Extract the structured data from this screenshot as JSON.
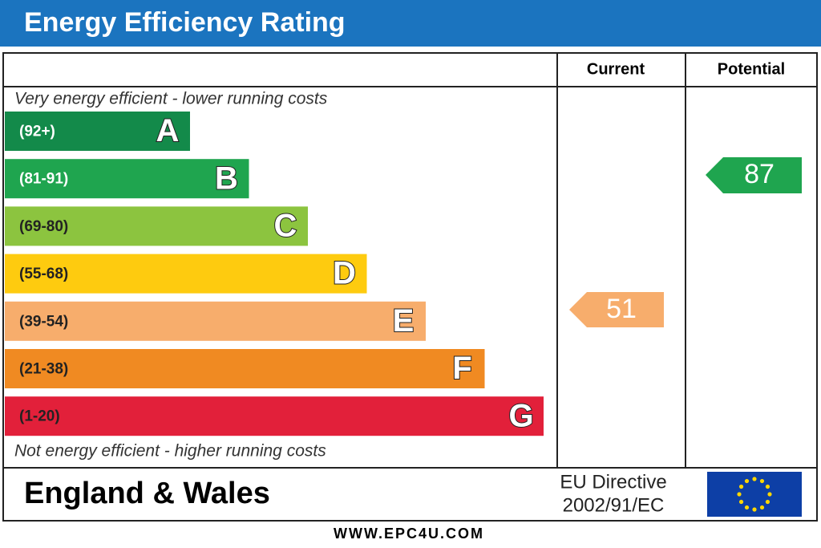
{
  "title": "Energy Efficiency Rating",
  "columns": [
    "Current",
    "Potential"
  ],
  "top_note": "Very energy efficient - lower running costs",
  "bottom_note": "Not energy efficient - higher running costs",
  "bands": [
    {
      "range": "(92+)",
      "letter": "A",
      "color": "#138a4a"
    },
    {
      "range": "(81-91)",
      "letter": "B",
      "color": "#1fa54f"
    },
    {
      "range": "(69-80)",
      "letter": "C",
      "color": "#8cc43f"
    },
    {
      "range": "(55-68)",
      "letter": "D",
      "color": "#fecb0f"
    },
    {
      "range": "(39-54)",
      "letter": "E",
      "color": "#f7ad6c"
    },
    {
      "range": "(21-38)",
      "letter": "F",
      "color": "#f08a22"
    },
    {
      "range": "(1-20)",
      "letter": "G",
      "color": "#e2203a"
    }
  ],
  "current": {
    "value": 51,
    "color": "#f7ad6c"
  },
  "potential": {
    "value": 87,
    "color": "#1fa54f"
  },
  "footer": {
    "region": "England & Wales",
    "directive": "EU Directive",
    "directive_code": "2002/91/EC",
    "website": "WWW.EPC4U.COM"
  }
}
